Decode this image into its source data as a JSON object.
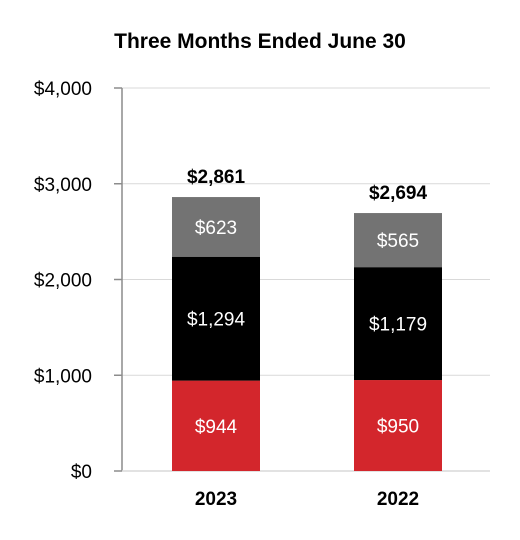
{
  "chart_data": {
    "type": "bar",
    "stacked": true,
    "title": "Three Months Ended June 30",
    "xlabel": "",
    "ylabel": "",
    "ylim": [
      0,
      4000
    ],
    "yticks": [
      0,
      1000,
      2000,
      3000,
      4000
    ],
    "ytick_labels": [
      "$0",
      "$1,000",
      "$2,000",
      "$3,000",
      "$4,000"
    ],
    "categories": [
      "2023",
      "2022"
    ],
    "series": [
      {
        "values": [
          944,
          950
        ],
        "labels": [
          "$944",
          "$950"
        ],
        "color": "#d3262c"
      },
      {
        "values": [
          1294,
          1179
        ],
        "labels": [
          "$1,294",
          "$1,179"
        ],
        "color": "#000000"
      },
      {
        "values": [
          623,
          565
        ],
        "labels": [
          "$623",
          "$565"
        ],
        "color": "#737373"
      }
    ],
    "totals": [
      2861,
      2694
    ],
    "total_labels": [
      "$2,861",
      "$2,694"
    ],
    "grid": true,
    "legend": "none"
  }
}
